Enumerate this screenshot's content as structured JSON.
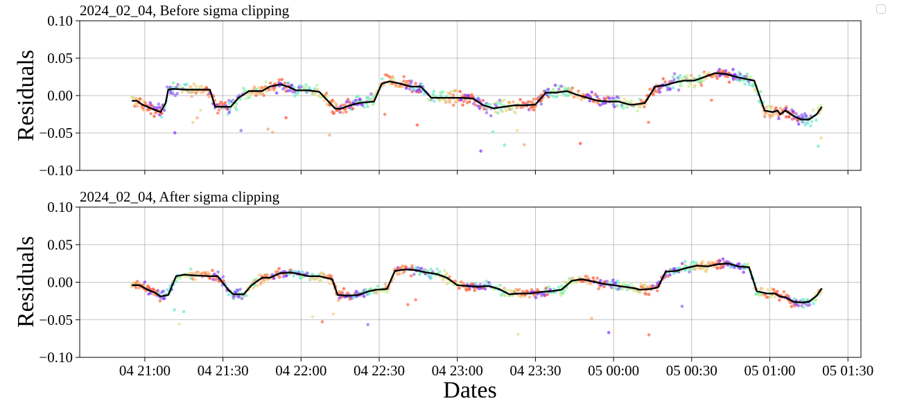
{
  "chart_data": [
    {
      "type": "scatter",
      "title": "2024_02_04, Before sigma clipping",
      "ylabel": "Residuals",
      "xlabel": "",
      "ylim": [
        -0.1,
        0.1
      ],
      "xlim": [
        "2024-02-04 20:35",
        "2024-02-05 01:35"
      ],
      "yticks": [
        "0.10",
        "0.05",
        "0.00",
        "−0.05",
        "−0.10"
      ],
      "grid": true,
      "trend": {
        "x": [
          "2024-02-04 20:55",
          "2024-02-04 20:57",
          "2024-02-04 20:59",
          "2024-02-04 21:03",
          "2024-02-04 21:06",
          "2024-02-04 21:08",
          "2024-02-04 21:09",
          "2024-02-04 21:11",
          "2024-02-04 21:15",
          "2024-02-04 21:19",
          "2024-02-04 21:25",
          "2024-02-04 21:27",
          "2024-02-04 21:33",
          "2024-02-04 21:36",
          "2024-02-04 21:40",
          "2024-02-04 21:45",
          "2024-02-04 21:48",
          "2024-02-04 21:52",
          "2024-02-04 21:55",
          "2024-02-04 21:58",
          "2024-02-04 22:03",
          "2024-02-04 22:07",
          "2024-02-04 22:13",
          "2024-02-04 22:15",
          "2024-02-04 22:18",
          "2024-02-04 22:22",
          "2024-02-04 22:28",
          "2024-02-04 22:31",
          "2024-02-04 22:34",
          "2024-02-04 22:38",
          "2024-02-04 22:42",
          "2024-02-04 22:46",
          "2024-02-04 22:50",
          "2024-02-04 22:54",
          "2024-02-04 22:58",
          "2024-02-04 23:02",
          "2024-02-04 23:06",
          "2024-02-04 23:10",
          "2024-02-04 23:14",
          "2024-02-04 23:18",
          "2024-02-04 23:22",
          "2024-02-04 23:26",
          "2024-02-04 23:30",
          "2024-02-04 23:34",
          "2024-02-04 23:38",
          "2024-02-04 23:42",
          "2024-02-04 23:46",
          "2024-02-04 23:50",
          "2024-02-04 23:54",
          "2024-02-04 23:58",
          "2024-02-05 00:02",
          "2024-02-05 00:06",
          "2024-02-05 00:08",
          "2024-02-05 00:12",
          "2024-02-05 00:16",
          "2024-02-05 00:20",
          "2024-02-05 00:24",
          "2024-02-05 00:27",
          "2024-02-05 00:31",
          "2024-02-05 00:35",
          "2024-02-05 00:39",
          "2024-02-05 00:43",
          "2024-02-05 00:47",
          "2024-02-05 00:51",
          "2024-02-05 00:54",
          "2024-02-05 00:58",
          "2024-02-05 01:01",
          "2024-02-05 01:03",
          "2024-02-05 01:04",
          "2024-02-05 01:06",
          "2024-02-05 01:09",
          "2024-02-05 01:12",
          "2024-02-05 01:15",
          "2024-02-05 01:18",
          "2024-02-05 01:20"
        ],
        "y": [
          -0.007,
          -0.007,
          -0.012,
          -0.018,
          -0.022,
          -0.01,
          0.008,
          0.009,
          0.008,
          0.008,
          0.008,
          -0.015,
          -0.015,
          -0.003,
          0.006,
          0.006,
          0.012,
          0.015,
          0.012,
          0.007,
          0.007,
          0.005,
          -0.017,
          -0.018,
          -0.014,
          -0.01,
          -0.008,
          0.016,
          0.019,
          0.016,
          0.012,
          0.012,
          -0.003,
          -0.003,
          -0.003,
          -0.003,
          -0.004,
          -0.013,
          -0.017,
          -0.015,
          -0.013,
          -0.013,
          -0.012,
          0.004,
          0.004,
          0.006,
          0.001,
          -0.003,
          -0.007,
          -0.008,
          -0.008,
          -0.012,
          -0.012,
          -0.01,
          0.012,
          0.014,
          0.018,
          0.02,
          0.02,
          0.025,
          0.03,
          0.029,
          0.025,
          0.022,
          0.02,
          -0.02,
          -0.022,
          -0.02,
          -0.025,
          -0.02,
          -0.027,
          -0.032,
          -0.032,
          -0.025,
          -0.015
        ]
      }
    },
    {
      "type": "scatter",
      "title": "2024_02_04, After sigma clipping",
      "ylabel": "Residuals",
      "xlabel": "Dates",
      "ylim": [
        -0.1,
        0.1
      ],
      "xlim": [
        "2024-02-04 20:35",
        "2024-02-05 01:35"
      ],
      "yticks": [
        "0.10",
        "0.05",
        "0.00",
        "−0.05",
        "−0.10"
      ],
      "xticks": [
        "04 21:00",
        "04 21:30",
        "04 22:00",
        "04 22:30",
        "04 23:00",
        "04 23:30",
        "05 00:00",
        "05 00:30",
        "05 01:00",
        "05 01:30"
      ],
      "grid": true,
      "trend": {
        "x": [
          "2024-02-04 20:55",
          "2024-02-04 20:58",
          "2024-02-04 21:01",
          "2024-02-04 21:04",
          "2024-02-04 21:06",
          "2024-02-04 21:09",
          "2024-02-04 21:12",
          "2024-02-04 21:15",
          "2024-02-04 21:19",
          "2024-02-04 21:25",
          "2024-02-04 21:28",
          "2024-02-04 21:32",
          "2024-02-04 21:34",
          "2024-02-04 21:38",
          "2024-02-04 21:41",
          "2024-02-04 21:45",
          "2024-02-04 21:48",
          "2024-02-04 21:52",
          "2024-02-04 21:56",
          "2024-02-04 21:59",
          "2024-02-04 22:03",
          "2024-02-04 22:07",
          "2024-02-04 22:12",
          "2024-02-04 22:14",
          "2024-02-04 22:18",
          "2024-02-04 22:22",
          "2024-02-04 22:26",
          "2024-02-04 22:29",
          "2024-02-04 22:33",
          "2024-02-04 22:36",
          "2024-02-04 22:40",
          "2024-02-04 22:44",
          "2024-02-04 22:48",
          "2024-02-04 22:52",
          "2024-02-04 22:56",
          "2024-02-04 23:00",
          "2024-02-04 23:04",
          "2024-02-04 23:08",
          "2024-02-04 23:12",
          "2024-02-04 23:16",
          "2024-02-04 23:20",
          "2024-02-04 23:24",
          "2024-02-04 23:28",
          "2024-02-04 23:32",
          "2024-02-04 23:36",
          "2024-02-04 23:40",
          "2024-02-04 23:44",
          "2024-02-04 23:48",
          "2024-02-04 23:52",
          "2024-02-04 23:56",
          "2024-02-05 00:00",
          "2024-02-05 00:04",
          "2024-02-05 00:08",
          "2024-02-05 00:10",
          "2024-02-05 00:14",
          "2024-02-05 00:17",
          "2024-02-05 00:20",
          "2024-02-05 00:24",
          "2024-02-05 00:28",
          "2024-02-05 00:32",
          "2024-02-05 00:36",
          "2024-02-05 00:40",
          "2024-02-05 00:44",
          "2024-02-05 00:48",
          "2024-02-05 00:52",
          "2024-02-05 00:55",
          "2024-02-05 00:59",
          "2024-02-05 01:02",
          "2024-02-05 01:04",
          "2024-02-05 01:06",
          "2024-02-05 01:09",
          "2024-02-05 01:12",
          "2024-02-05 01:15",
          "2024-02-05 01:18",
          "2024-02-05 01:20"
        ],
        "y": [
          -0.004,
          -0.004,
          -0.01,
          -0.014,
          -0.019,
          -0.017,
          0.008,
          0.01,
          0.009,
          0.008,
          0.008,
          -0.01,
          -0.016,
          -0.016,
          -0.004,
          0.006,
          0.006,
          0.012,
          0.013,
          0.011,
          0.008,
          0.008,
          0.004,
          -0.017,
          -0.018,
          -0.017,
          -0.012,
          -0.01,
          -0.009,
          0.015,
          0.017,
          0.016,
          0.013,
          0.011,
          0.006,
          -0.004,
          -0.005,
          -0.006,
          -0.005,
          -0.009,
          -0.016,
          -0.015,
          -0.015,
          -0.013,
          -0.012,
          -0.01,
          0.002,
          0.004,
          0.001,
          -0.002,
          -0.004,
          -0.006,
          -0.008,
          -0.01,
          -0.009,
          -0.007,
          0.014,
          0.015,
          0.019,
          0.022,
          0.021,
          0.024,
          0.025,
          0.021,
          0.02,
          -0.012,
          -0.015,
          -0.015,
          -0.019,
          -0.02,
          -0.026,
          -0.027,
          -0.026,
          -0.018,
          -0.008
        ]
      }
    }
  ],
  "colors": {
    "trend": "#000000",
    "grid": "#b0b0b0",
    "points": [
      "#8b3cff",
      "#9a6cf0",
      "#70e8dc",
      "#7df0b0",
      "#c8f29a",
      "#f7d28a",
      "#f8a97a",
      "#f8764f",
      "#ff5a3c"
    ]
  }
}
